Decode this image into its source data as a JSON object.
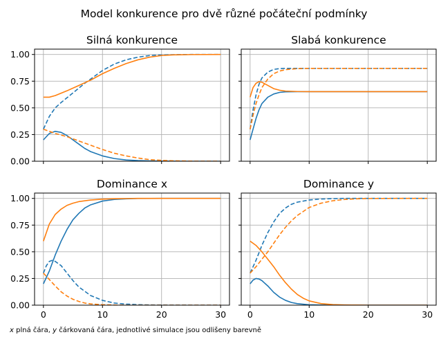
{
  "figure": {
    "title": "Model konkurence pro dvě různé počáteční podmínky",
    "footer": "x plná čára, y čárkovaná čára, jednotlivé simulace jsou odlišeny barevně",
    "colors": {
      "sim1": "#1f77b4",
      "sim2": "#ff7f0e"
    }
  },
  "chart_data": [
    {
      "type": "line",
      "title": "Silná konkurence",
      "xlim": [
        -1.5,
        31.5
      ],
      "ylim": [
        0,
        1.05
      ],
      "xticks": [
        0,
        10,
        20,
        30
      ],
      "yticks": [
        0,
        0.25,
        0.5,
        0.75,
        1.0
      ],
      "yticklabels": [
        "0.00",
        "0.25",
        "0.50",
        "0.75",
        "1.00"
      ],
      "show_xticklabels": false,
      "show_yticklabels": true,
      "grid": true,
      "series": [
        {
          "color": "sim1",
          "dash": false,
          "x": [
            0,
            1,
            2,
            3,
            4,
            5,
            6,
            7,
            8,
            10,
            12,
            14,
            16,
            18,
            20,
            25,
            30
          ],
          "y": [
            0.2,
            0.26,
            0.28,
            0.27,
            0.24,
            0.2,
            0.16,
            0.12,
            0.09,
            0.05,
            0.025,
            0.012,
            0.006,
            0.003,
            0.001,
            0,
            0
          ]
        },
        {
          "color": "sim1",
          "dash": true,
          "x": [
            0,
            1,
            2,
            3,
            5,
            7,
            10,
            12,
            14,
            16,
            18,
            20,
            22,
            25,
            30
          ],
          "y": [
            0.3,
            0.42,
            0.5,
            0.55,
            0.64,
            0.73,
            0.85,
            0.91,
            0.95,
            0.975,
            0.99,
            0.995,
            0.998,
            1.0,
            1.0
          ]
        },
        {
          "color": "sim2",
          "dash": false,
          "x": [
            0,
            1,
            2,
            4,
            6,
            8,
            10,
            12,
            14,
            16,
            18,
            20,
            22,
            25,
            30
          ],
          "y": [
            0.6,
            0.6,
            0.615,
            0.66,
            0.71,
            0.76,
            0.82,
            0.87,
            0.915,
            0.95,
            0.975,
            0.99,
            0.996,
            0.999,
            1.0
          ]
        },
        {
          "color": "sim2",
          "dash": true,
          "x": [
            0,
            2,
            4,
            6,
            8,
            10,
            12,
            14,
            16,
            18,
            20,
            22,
            25,
            30
          ],
          "y": [
            0.3,
            0.26,
            0.23,
            0.19,
            0.15,
            0.11,
            0.075,
            0.05,
            0.03,
            0.015,
            0.008,
            0.004,
            0.001,
            0
          ]
        }
      ]
    },
    {
      "type": "line",
      "title": "Slabá konkurence",
      "xlim": [
        -1.5,
        31.5
      ],
      "ylim": [
        0,
        1.05
      ],
      "xticks": [
        0,
        10,
        20,
        30
      ],
      "yticks": [
        0,
        0.25,
        0.5,
        0.75,
        1.0
      ],
      "yticklabels": [
        "0.00",
        "0.25",
        "0.50",
        "0.75",
        "1.00"
      ],
      "show_xticklabels": false,
      "show_yticklabels": false,
      "grid": true,
      "series": [
        {
          "color": "sim1",
          "dash": false,
          "x": [
            0,
            0.5,
            1,
            1.5,
            2,
            3,
            4,
            5,
            6,
            8,
            10,
            15,
            20,
            30
          ],
          "y": [
            0.2,
            0.3,
            0.4,
            0.48,
            0.54,
            0.6,
            0.63,
            0.645,
            0.65,
            0.652,
            0.652,
            0.652,
            0.652,
            0.652
          ]
        },
        {
          "color": "sim1",
          "dash": true,
          "x": [
            0,
            0.5,
            1,
            1.5,
            2,
            3,
            4,
            5,
            6,
            8,
            10,
            15,
            20,
            30
          ],
          "y": [
            0.3,
            0.48,
            0.62,
            0.72,
            0.78,
            0.835,
            0.86,
            0.868,
            0.87,
            0.87,
            0.87,
            0.87,
            0.87,
            0.87
          ]
        },
        {
          "color": "sim2",
          "dash": false,
          "x": [
            0,
            0.5,
            1,
            1.5,
            2,
            3,
            4,
            5,
            6,
            8,
            10,
            15,
            20,
            30
          ],
          "y": [
            0.6,
            0.69,
            0.73,
            0.745,
            0.74,
            0.71,
            0.68,
            0.665,
            0.657,
            0.653,
            0.652,
            0.652,
            0.652,
            0.652
          ]
        },
        {
          "color": "sim2",
          "dash": true,
          "x": [
            0,
            0.5,
            1,
            1.5,
            2,
            3,
            4,
            5,
            6,
            8,
            10,
            15,
            20,
            30
          ],
          "y": [
            0.3,
            0.43,
            0.54,
            0.62,
            0.69,
            0.77,
            0.82,
            0.845,
            0.858,
            0.867,
            0.87,
            0.87,
            0.87,
            0.87
          ]
        }
      ]
    },
    {
      "type": "line",
      "title": "Dominance x",
      "xlim": [
        -1.5,
        31.5
      ],
      "ylim": [
        0,
        1.05
      ],
      "xticks": [
        0,
        10,
        20,
        30
      ],
      "yticks": [
        0,
        0.25,
        0.5,
        0.75,
        1.0
      ],
      "xticklabels": [
        "0",
        "10",
        "20",
        "30"
      ],
      "yticklabels": [
        "0.00",
        "0.25",
        "0.50",
        "0.75",
        "1.00"
      ],
      "show_xticklabels": true,
      "show_yticklabels": true,
      "grid": true,
      "series": [
        {
          "color": "sim1",
          "dash": false,
          "x": [
            0,
            1,
            2,
            3,
            4,
            5,
            6,
            7,
            8,
            10,
            12,
            14,
            16,
            20,
            25,
            30
          ],
          "y": [
            0.2,
            0.32,
            0.47,
            0.6,
            0.71,
            0.8,
            0.86,
            0.91,
            0.94,
            0.975,
            0.99,
            0.996,
            0.999,
            1.0,
            1.0,
            1.0
          ]
        },
        {
          "color": "sim1",
          "dash": true,
          "x": [
            0,
            0.5,
            1,
            1.5,
            2,
            3,
            4,
            5,
            6,
            8,
            10,
            12,
            14,
            16,
            18,
            20,
            25,
            30
          ],
          "y": [
            0.3,
            0.37,
            0.41,
            0.42,
            0.41,
            0.37,
            0.3,
            0.23,
            0.17,
            0.09,
            0.045,
            0.02,
            0.01,
            0.005,
            0.002,
            0.001,
            0,
            0
          ]
        },
        {
          "color": "sim2",
          "dash": false,
          "x": [
            0,
            1,
            2,
            3,
            4,
            5,
            6,
            8,
            10,
            12,
            14,
            16,
            20,
            25,
            30
          ],
          "y": [
            0.6,
            0.76,
            0.85,
            0.9,
            0.935,
            0.955,
            0.97,
            0.985,
            0.993,
            0.997,
            0.999,
            1.0,
            1.0,
            1.0,
            1.0
          ]
        },
        {
          "color": "sim2",
          "dash": true,
          "x": [
            0,
            1,
            2,
            3,
            4,
            5,
            6,
            7,
            8,
            10,
            12,
            14,
            20,
            25,
            30
          ],
          "y": [
            0.3,
            0.24,
            0.18,
            0.125,
            0.085,
            0.055,
            0.035,
            0.02,
            0.012,
            0.004,
            0.001,
            0,
            0,
            0,
            0
          ]
        }
      ]
    },
    {
      "type": "line",
      "title": "Dominance y",
      "xlim": [
        -1.5,
        31.5
      ],
      "ylim": [
        0,
        1.05
      ],
      "xticks": [
        0,
        10,
        20,
        30
      ],
      "yticks": [
        0,
        0.25,
        0.5,
        0.75,
        1.0
      ],
      "xticklabels": [
        "0",
        "10",
        "20",
        "30"
      ],
      "yticklabels": [
        "0.00",
        "0.25",
        "0.50",
        "0.75",
        "1.00"
      ],
      "show_xticklabels": true,
      "show_yticklabels": false,
      "grid": true,
      "series": [
        {
          "color": "sim1",
          "dash": false,
          "x": [
            0,
            0.5,
            1,
            1.5,
            2,
            3,
            4,
            5,
            6,
            7,
            8,
            10,
            12,
            14,
            20,
            30
          ],
          "y": [
            0.2,
            0.235,
            0.25,
            0.245,
            0.23,
            0.18,
            0.12,
            0.075,
            0.045,
            0.025,
            0.014,
            0.004,
            0.001,
            0,
            0,
            0
          ]
        },
        {
          "color": "sim1",
          "dash": true,
          "x": [
            0,
            1,
            2,
            3,
            4,
            5,
            6,
            7,
            8,
            10,
            12,
            14,
            16,
            20,
            25,
            30
          ],
          "y": [
            0.3,
            0.42,
            0.56,
            0.68,
            0.78,
            0.86,
            0.91,
            0.945,
            0.965,
            0.985,
            0.994,
            0.998,
            1.0,
            1.0,
            1.0,
            1.0
          ]
        },
        {
          "color": "sim2",
          "dash": false,
          "x": [
            0,
            1,
            2,
            3,
            4,
            5,
            6,
            7,
            8,
            9,
            10,
            12,
            14,
            16,
            18,
            20,
            30
          ],
          "y": [
            0.6,
            0.56,
            0.5,
            0.43,
            0.36,
            0.28,
            0.21,
            0.15,
            0.1,
            0.065,
            0.04,
            0.015,
            0.005,
            0.002,
            0.001,
            0,
            0
          ]
        },
        {
          "color": "sim2",
          "dash": true,
          "x": [
            0,
            1,
            2,
            3,
            4,
            5,
            6,
            7,
            8,
            10,
            12,
            14,
            16,
            18,
            20,
            25,
            30
          ],
          "y": [
            0.3,
            0.36,
            0.43,
            0.5,
            0.58,
            0.66,
            0.73,
            0.79,
            0.84,
            0.915,
            0.955,
            0.978,
            0.99,
            0.996,
            0.999,
            1.0,
            1.0
          ]
        }
      ]
    }
  ]
}
